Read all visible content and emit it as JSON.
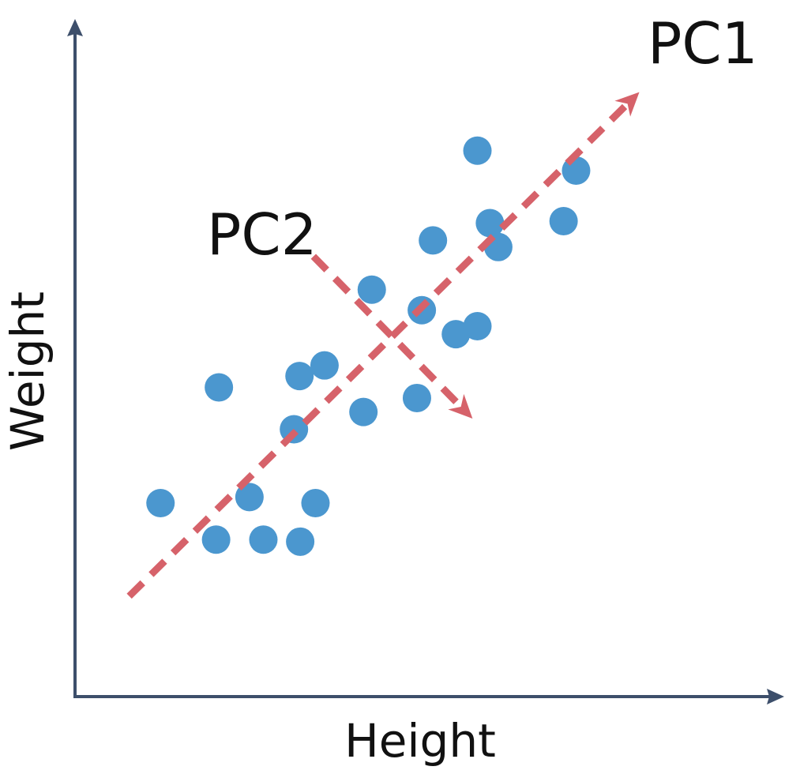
{
  "chart_data": {
    "type": "scatter",
    "title": "",
    "xlabel": "Height",
    "ylabel": "Weight",
    "xlim": [
      0,
      100
    ],
    "ylim": [
      0,
      100
    ],
    "grid": false,
    "legend": "none",
    "colors": {
      "points": "#4b97cf",
      "components": "#d6626a",
      "axes": "#3d4f6b"
    },
    "points": [
      {
        "x": 12.3,
        "y": 29.1
      },
      {
        "x": 20.3,
        "y": 23.6
      },
      {
        "x": 27.1,
        "y": 23.6
      },
      {
        "x": 32.4,
        "y": 23.3
      },
      {
        "x": 25.1,
        "y": 30.0
      },
      {
        "x": 34.6,
        "y": 29.1
      },
      {
        "x": 20.7,
        "y": 46.5
      },
      {
        "x": 31.5,
        "y": 40.2
      },
      {
        "x": 32.3,
        "y": 48.2
      },
      {
        "x": 35.9,
        "y": 49.8
      },
      {
        "x": 41.5,
        "y": 42.8
      },
      {
        "x": 42.7,
        "y": 61.2
      },
      {
        "x": 49.2,
        "y": 44.9
      },
      {
        "x": 49.9,
        "y": 58.1
      },
      {
        "x": 51.5,
        "y": 68.6
      },
      {
        "x": 54.8,
        "y": 54.5
      },
      {
        "x": 57.9,
        "y": 55.7
      },
      {
        "x": 59.7,
        "y": 71.2
      },
      {
        "x": 60.9,
        "y": 67.6
      },
      {
        "x": 57.9,
        "y": 82.1
      },
      {
        "x": 70.3,
        "y": 71.5
      },
      {
        "x": 72.1,
        "y": 79.1
      }
    ],
    "components": [
      {
        "name": "PC1",
        "from": [
          7.8,
          15.1
        ],
        "to": [
          81.2,
          90.9
        ]
      },
      {
        "name": "PC2",
        "from": [
          34.3,
          66.2
        ],
        "to": [
          57.2,
          41.8
        ]
      }
    ]
  }
}
